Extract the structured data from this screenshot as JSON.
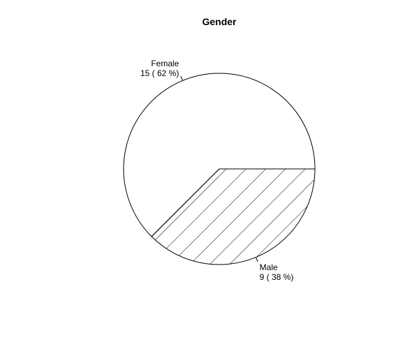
{
  "chart_data": {
    "type": "pie",
    "title": "Gender",
    "slices": [
      {
        "label": "Female",
        "value": 15,
        "display": "15 ( 62 %)",
        "fill": "none"
      },
      {
        "label": "Male",
        "value": 9,
        "display": "9 ( 38 %)",
        "fill": "hatched"
      }
    ],
    "colors": {
      "outline": "#000000",
      "background": "#ffffff",
      "hatch": "#000000"
    }
  }
}
